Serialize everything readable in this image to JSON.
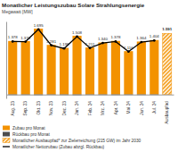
{
  "chart_data": {
    "type": "bar",
    "title": "Monatlicher Leistungszubau Solare Strahlungsenergie",
    "subtitle": "Megawatt [MW]",
    "categories": [
      "Aug. 23",
      "Sep. 23",
      "Okt. 23",
      "Nov. 23",
      "Dez. 23",
      "Jan. 24",
      "Feb. 24",
      "Mrz. 24",
      "Apr. 24",
      "Mai 24",
      "Jun. 24",
      "Jul. 24",
      "Ausbaupfad"
    ],
    "ylim": [
      -100,
      1900
    ],
    "tick_labels": "x",
    "stacked": true,
    "data_labels": true,
    "grid": false,
    "legend": "bottom",
    "series": [
      {
        "name": "Zubau pro Monat",
        "type": "bar",
        "color": "#f39200",
        "values": [
          1392,
          1388,
          1713,
          1291,
          1213,
          1528,
          1222,
          1353,
          1394,
          1128,
          1378,
          1416,
          null
        ]
      },
      {
        "name": "Rückbau pro Monat",
        "type": "bar",
        "color": "#4d4d4d",
        "values": [
          -14,
          -12,
          -18,
          -10,
          -15,
          -20,
          -11,
          -13,
          -16,
          -12,
          -14,
          -12,
          null
        ]
      },
      {
        "name": "Monatlicher Ausbaupfad* zur Zielerreichung (215 GW) im Jahr 2030",
        "type": "bar",
        "color": "#f39200",
        "line_style": "hatched",
        "values": [
          null,
          null,
          null,
          null,
          null,
          null,
          null,
          null,
          null,
          null,
          null,
          null,
          1591
        ],
        "value_labels": [
          null,
          null,
          null,
          null,
          null,
          null,
          null,
          null,
          null,
          null,
          null,
          null,
          "1.591"
        ]
      },
      {
        "name": "Monatlicher Nettozubau (Zubau abzgl. Rückbau)",
        "type": "line",
        "color": "#000000",
        "marker": "circle",
        "values": [
          1378,
          1376,
          1695,
          1281,
          1198,
          1508,
          1211,
          1340,
          1378,
          1116,
          1364,
          1404,
          null
        ],
        "value_labels": [
          "1.378",
          "1.376",
          "1.695",
          "1.281",
          "1.198",
          "1.508",
          "1.211",
          "1.340",
          "1.378",
          "1.116",
          "1.364",
          "1.404",
          null
        ]
      }
    ]
  }
}
